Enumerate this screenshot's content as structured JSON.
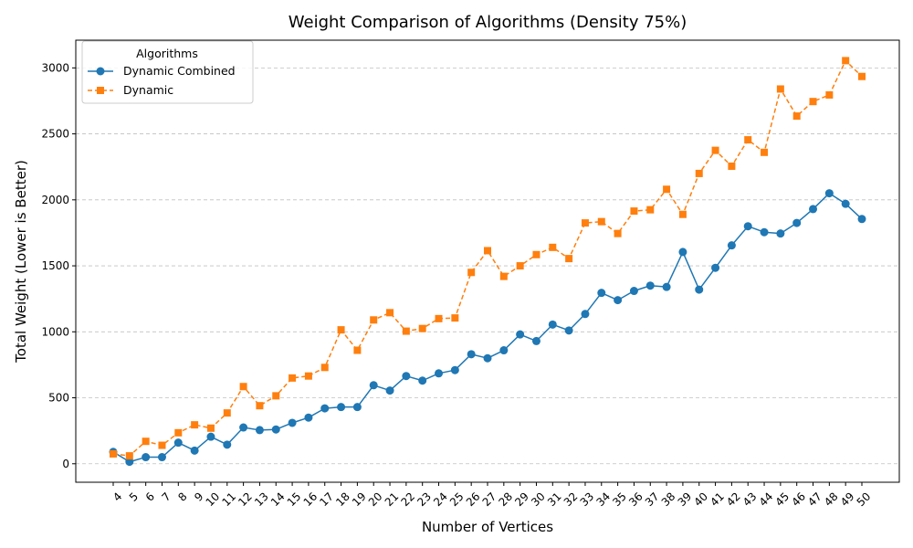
{
  "chart_data": {
    "type": "line",
    "title": "Weight Comparison of Algorithms (Density 75%)",
    "xlabel": "Number of Vertices",
    "ylabel": "Total Weight (Lower is Better)",
    "x": [
      4,
      5,
      6,
      7,
      8,
      9,
      10,
      11,
      12,
      13,
      14,
      15,
      16,
      17,
      18,
      19,
      20,
      21,
      22,
      23,
      24,
      25,
      26,
      27,
      28,
      29,
      30,
      31,
      32,
      33,
      34,
      35,
      36,
      37,
      38,
      39,
      40,
      41,
      42,
      43,
      44,
      45,
      46,
      47,
      48,
      49,
      50
    ],
    "ylim": [
      -140,
      3210
    ],
    "yticks": [
      0,
      500,
      1000,
      1500,
      2000,
      2500,
      3000
    ],
    "grid": "y-dashed",
    "legend": {
      "title": "Algorithms",
      "placement": "upper-left"
    },
    "series": [
      {
        "name": "Dynamic Combined",
        "color": "#1f77b4",
        "marker": "circle",
        "linestyle": "solid",
        "values": [
          90,
          15,
          50,
          50,
          160,
          100,
          205,
          145,
          275,
          255,
          260,
          310,
          350,
          420,
          430,
          430,
          595,
          555,
          665,
          630,
          685,
          710,
          830,
          800,
          860,
          980,
          930,
          1055,
          1010,
          1135,
          1295,
          1240,
          1310,
          1350,
          1340,
          1605,
          1320,
          1485,
          1655,
          1800,
          1755,
          1745,
          1825,
          1930,
          2050,
          1970,
          1855
        ]
      },
      {
        "name": "Dynamic",
        "color": "#ff7f0e",
        "marker": "square",
        "linestyle": "dashed",
        "values": [
          75,
          60,
          170,
          140,
          235,
          295,
          270,
          385,
          585,
          440,
          515,
          650,
          665,
          730,
          1015,
          860,
          1090,
          1145,
          1005,
          1025,
          1100,
          1105,
          1450,
          1615,
          1420,
          1500,
          1585,
          1640,
          1555,
          1825,
          1835,
          1745,
          1915,
          1925,
          2080,
          1890,
          2200,
          2375,
          2255,
          2455,
          2360,
          2840,
          2635,
          2745,
          2795,
          3055,
          2935
        ]
      }
    ]
  }
}
